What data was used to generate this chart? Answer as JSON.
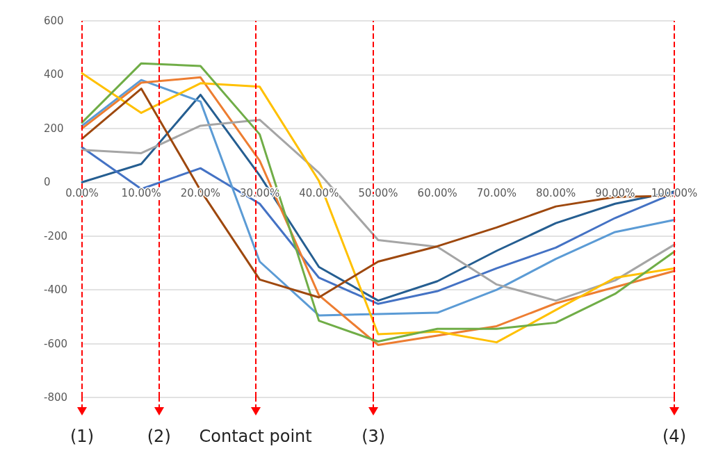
{
  "chart_data": {
    "type": "line",
    "marker": "none",
    "line_style": "solid",
    "grid": "y",
    "annotations": [
      "(1)",
      "(2)",
      "(3)",
      "(4)"
    ],
    "x": [
      0,
      10,
      20,
      30,
      40,
      50,
      60,
      70,
      80,
      90,
      100
    ],
    "xlim": [
      0,
      100
    ],
    "xticks": [
      {
        "value": 0,
        "label": "0.00%"
      },
      {
        "value": 10,
        "label": "10.00%"
      },
      {
        "value": 20,
        "label": "20.00%"
      },
      {
        "value": 30,
        "label": "30.00%"
      },
      {
        "value": 40,
        "label": "40.00%"
      },
      {
        "value": 50,
        "label": "50.00%"
      },
      {
        "value": 60,
        "label": "60.00%"
      },
      {
        "value": 70,
        "label": "70.00%"
      },
      {
        "value": 80,
        "label": "80.00%"
      },
      {
        "value": 90,
        "label": "90.00%"
      },
      {
        "value": 100,
        "label": "100.00%"
      }
    ],
    "ylim": [
      -800,
      600
    ],
    "yticks": [
      -800,
      -600,
      -400,
      -200,
      0,
      200,
      400,
      600
    ],
    "series": [
      {
        "color": "#255e91",
        "values": [
          0,
          68,
          325,
          25,
          -315,
          -440,
          -368,
          -255,
          -152,
          -80,
          -35
        ]
      },
      {
        "color": "#4472c4",
        "values": [
          130,
          -25,
          52,
          -80,
          -355,
          -452,
          -405,
          -320,
          -243,
          -133,
          -40
        ]
      },
      {
        "color": "#5b9bd5",
        "values": [
          210,
          380,
          300,
          -295,
          -495,
          -490,
          -485,
          -400,
          -285,
          -185,
          -140
        ]
      },
      {
        "color": "#ed7d31",
        "values": [
          200,
          370,
          390,
          80,
          -420,
          -605,
          -570,
          -535,
          -450,
          -390,
          -330
        ]
      },
      {
        "color": "#a5a5a5",
        "values": [
          120,
          108,
          210,
          232,
          35,
          -215,
          -240,
          -380,
          -440,
          -365,
          -232
        ]
      },
      {
        "color": "#ffc000",
        "values": [
          405,
          258,
          368,
          355,
          5,
          -565,
          -555,
          -595,
          -475,
          -355,
          -320
        ]
      },
      {
        "color": "#70ad47",
        "values": [
          222,
          442,
          432,
          178,
          -515,
          -592,
          -545,
          -545,
          -522,
          -415,
          -258
        ]
      },
      {
        "color": "#9e480e",
        "values": [
          162,
          348,
          -30,
          -362,
          -428,
          -295,
          -238,
          -168,
          -90,
          -55,
          -50
        ]
      }
    ],
    "ref_lines": [
      {
        "axis": "x",
        "value": 0,
        "color": "#ff0000",
        "line_style": "dashed"
      },
      {
        "axis": "x",
        "value": 13,
        "color": "#ff0000",
        "line_style": "dashed"
      },
      {
        "axis": "x",
        "value": 29.3,
        "label": "Contact point",
        "color": "#ff0000",
        "line_style": "dashed"
      },
      {
        "axis": "x",
        "value": 49.2,
        "color": "#ff0000",
        "line_style": "dashed"
      },
      {
        "axis": "x",
        "value": 100,
        "color": "#ff0000",
        "line_style": "dashed"
      }
    ]
  }
}
